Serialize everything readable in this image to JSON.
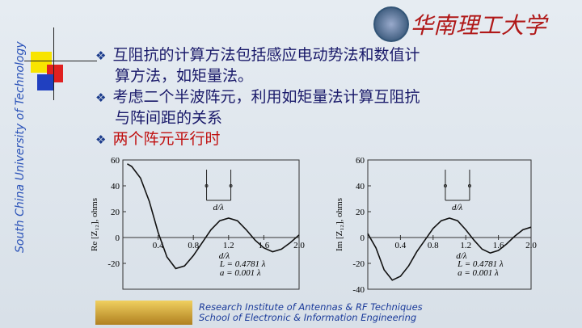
{
  "logo_text": "华南理工大学",
  "side_text": "South China University of Technology",
  "bullets": [
    [
      "互阻抗的计算方法包括感应电动势法和数值计",
      "算方法，如矩量法。"
    ],
    [
      "考虑二个半波阵元，利用如矩量法计算互阻抗",
      "与阵间距的关系"
    ],
    [
      "两个阵元平行时"
    ]
  ],
  "footer": [
    "Research Institute of Antennas & RF Techniques",
    "School of Electronic & Information Engineering"
  ],
  "chart_data": [
    {
      "type": "line",
      "ylabel": "Re [Z₁₂], ohms",
      "xlabel": "d/λ",
      "inset_label": "d/λ",
      "annotations": [
        "L = 0.4781 λ",
        "a = 0.001 λ"
      ],
      "color": "#111111",
      "x": [
        0.05,
        0.1,
        0.2,
        0.3,
        0.4,
        0.5,
        0.6,
        0.7,
        0.8,
        0.9,
        1.0,
        1.1,
        1.2,
        1.3,
        1.4,
        1.5,
        1.6,
        1.7,
        1.8,
        1.9,
        2.0
      ],
      "values": [
        57,
        55,
        46,
        28,
        4,
        -15,
        -24,
        -22,
        -14,
        -4,
        6,
        13,
        15,
        13,
        6,
        -2,
        -8,
        -11,
        -9,
        -4,
        2
      ],
      "xlim": [
        0,
        2
      ],
      "ylim": [
        -40,
        60
      ],
      "xticks": [
        0.4,
        0.8,
        1.2,
        1.6,
        {
          "value": 2,
          "label": "2.0"
        }
      ],
      "yticks": [
        -20,
        0,
        20,
        40,
        60
      ]
    },
    {
      "type": "line",
      "ylabel": "Im [Z₁₂], ohms",
      "xlabel": "d/λ",
      "inset_label": "d/λ",
      "annotations": [
        "L = 0.4781 λ",
        "a = 0.001 λ"
      ],
      "color": "#111111",
      "x": [
        0.0,
        0.1,
        0.2,
        0.3,
        0.4,
        0.5,
        0.6,
        0.7,
        0.8,
        0.9,
        1.0,
        1.1,
        1.2,
        1.3,
        1.4,
        1.5,
        1.6,
        1.7,
        1.8,
        1.9,
        2.0
      ],
      "values": [
        3,
        -8,
        -25,
        -33,
        -30,
        -22,
        -11,
        -2,
        7,
        13,
        15,
        13,
        6,
        -2,
        -9,
        -12,
        -10,
        -5,
        1,
        6,
        8
      ],
      "xlim": [
        0,
        2
      ],
      "ylim": [
        -40,
        60
      ],
      "xticks": [
        0.4,
        0.8,
        1.2,
        1.6,
        {
          "value": 2,
          "label": "2.0"
        }
      ],
      "yticks": [
        -40,
        -20,
        0,
        20,
        40,
        60
      ]
    }
  ]
}
